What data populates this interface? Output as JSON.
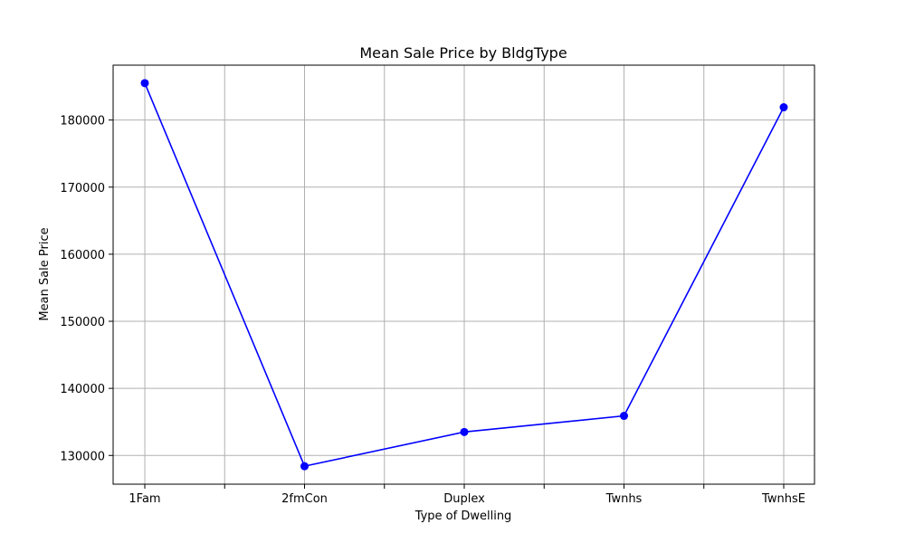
{
  "chart_data": {
    "type": "line",
    "title": "Mean Sale Price by BldgType",
    "xlabel": "Type of Dwelling",
    "ylabel": "Mean Sale Price",
    "categories": [
      "1Fam",
      "2fmCon",
      "Duplex",
      "Twnhs",
      "TwnhsE"
    ],
    "series": [
      {
        "values": [
          185500,
          128400,
          133500,
          135900,
          181900
        ],
        "color": "#0000ff",
        "marker": "circle"
      }
    ],
    "yticks": [
      130000,
      140000,
      150000,
      160000,
      170000,
      180000
    ],
    "ytick_labels": [
      "130000",
      "140000",
      "150000",
      "160000",
      "170000",
      "180000"
    ],
    "ylim": [
      125720,
      188180
    ],
    "grid": true
  }
}
